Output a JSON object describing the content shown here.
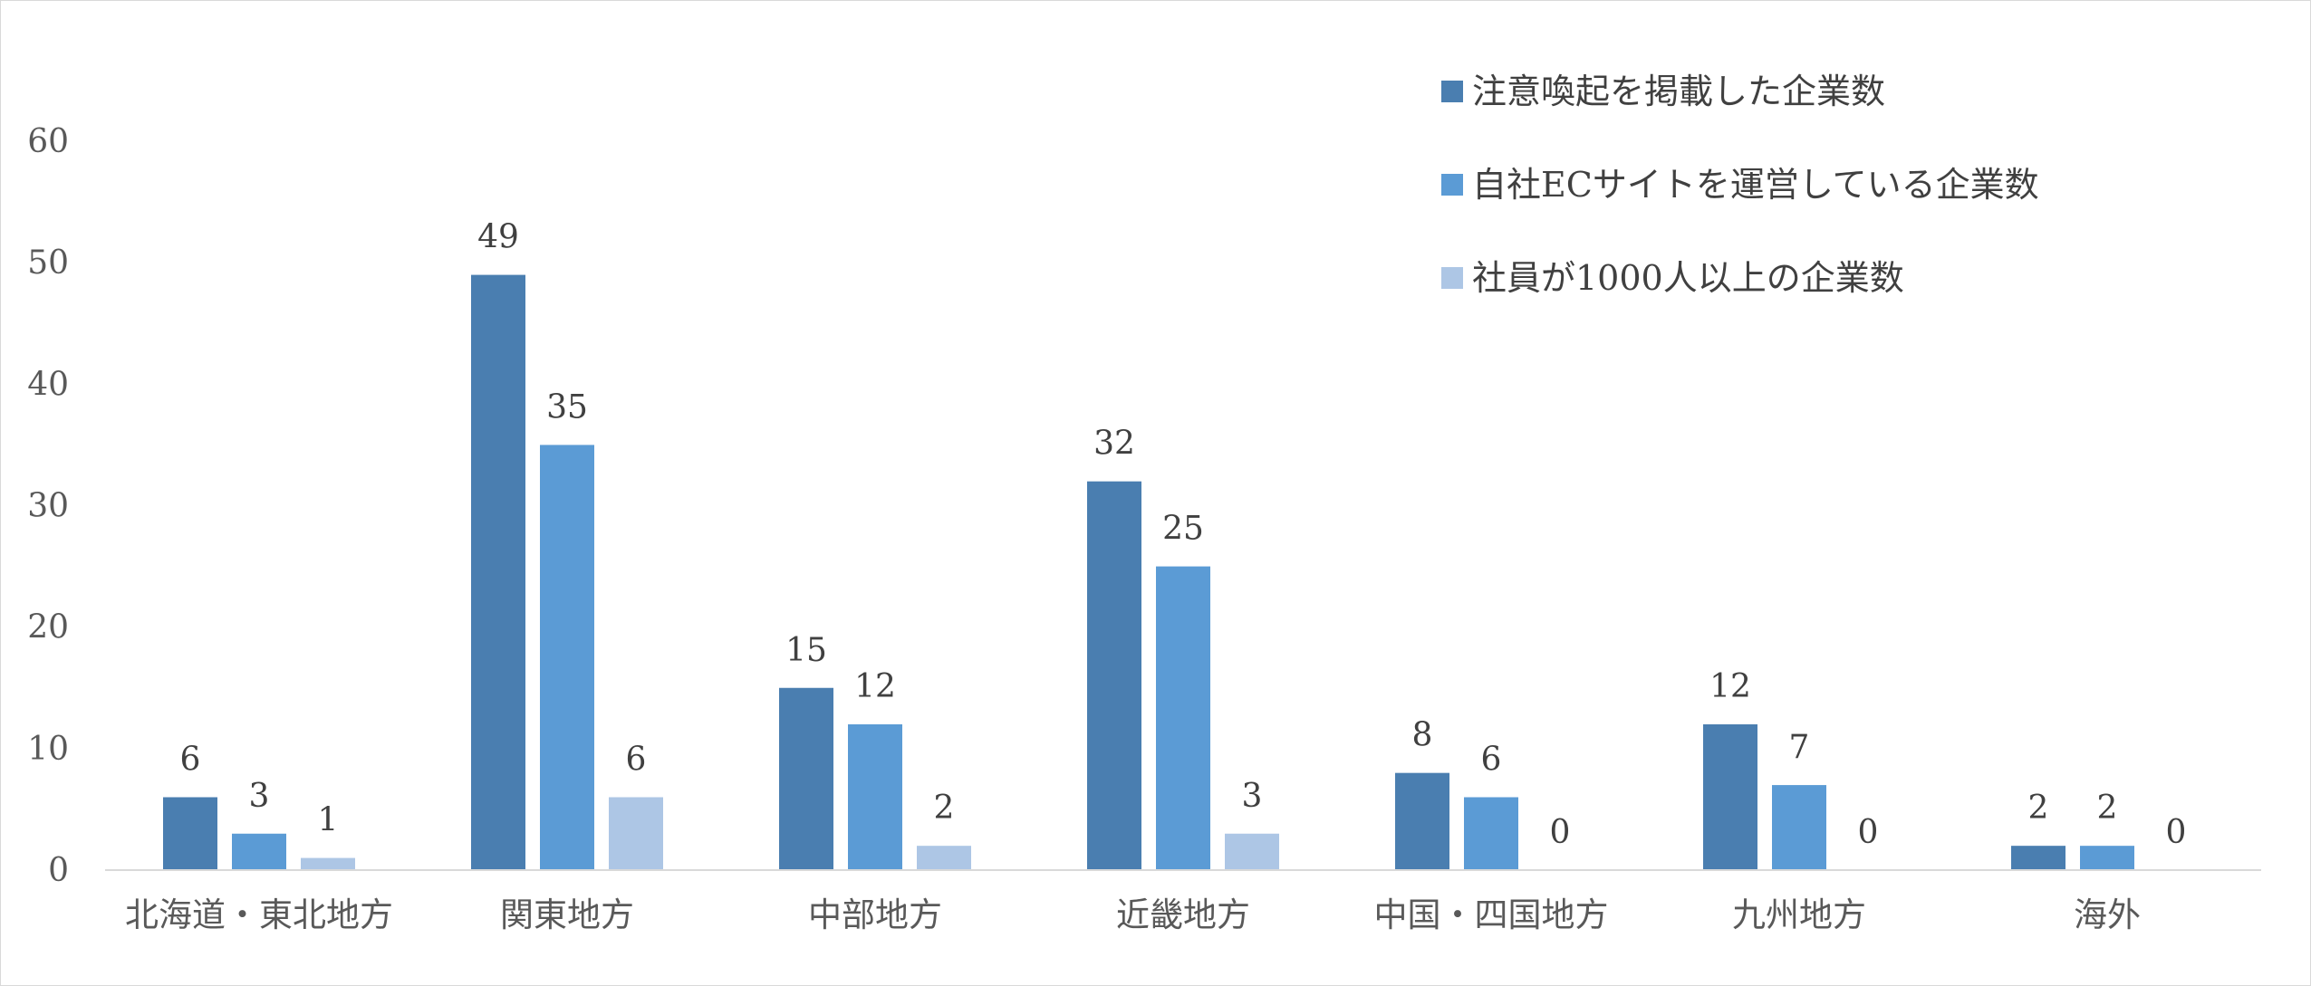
{
  "chart_data": {
    "type": "bar",
    "categories": [
      "北海道・東北地方",
      "関東地方",
      "中部地方",
      "近畿地方",
      "中国・四国地方",
      "九州地方",
      "海外"
    ],
    "series": [
      {
        "name": "注意喚起を掲載した企業数",
        "values": [
          6,
          49,
          15,
          32,
          8,
          12,
          2
        ],
        "color": "#4a7eb0"
      },
      {
        "name": "自社ECサイトを運営している企業数",
        "values": [
          3,
          35,
          12,
          25,
          6,
          7,
          2
        ],
        "color": "#5b9bd5"
      },
      {
        "name": "社員が1000人以上の企業数",
        "values": [
          1,
          6,
          2,
          3,
          0,
          0,
          0
        ],
        "color": "#adc6e5"
      }
    ],
    "ylim": [
      0,
      60
    ],
    "yticks": [
      0,
      10,
      20,
      30,
      40,
      50,
      60
    ],
    "grid": false,
    "data_labels": true,
    "legend_position": "top-right",
    "axis_color": "#d9d9d9"
  }
}
